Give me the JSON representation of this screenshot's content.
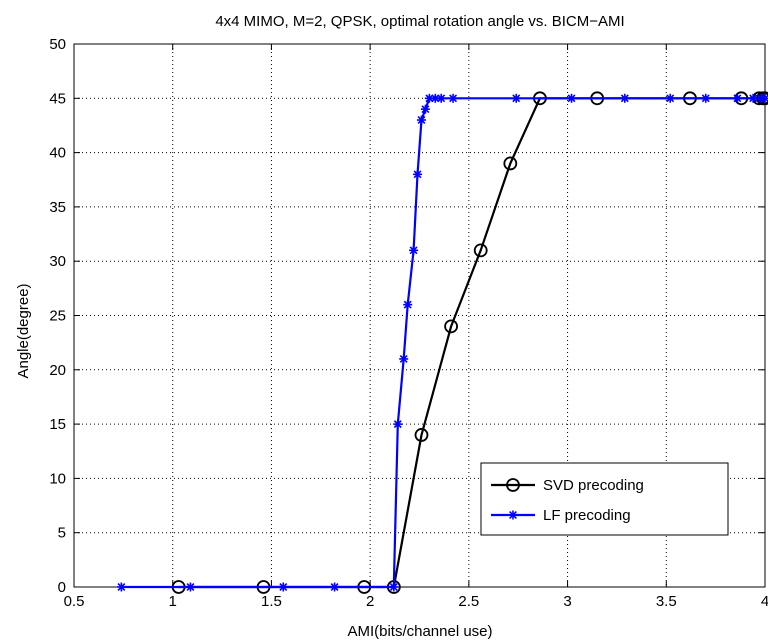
{
  "chart_data": {
    "type": "line",
    "title": "4x4 MIMO, M=2, QPSK, optimal rotation angle vs. BICM−AMI",
    "xlabel": "AMI(bits/channel use)",
    "ylabel": "Angle(degree)",
    "xlim": [
      0.5,
      4
    ],
    "ylim": [
      0,
      50
    ],
    "xticks": [
      0.5,
      1,
      1.5,
      2,
      2.5,
      3,
      3.5,
      4
    ],
    "yticks": [
      0,
      5,
      10,
      15,
      20,
      25,
      30,
      35,
      40,
      45,
      50
    ],
    "xtick_labels": [
      "0.5",
      "1",
      "1.5",
      "2",
      "2.5",
      "3",
      "3.5",
      "4"
    ],
    "ytick_labels": [
      "0",
      "5",
      "10",
      "15",
      "20",
      "25",
      "30",
      "35",
      "40",
      "45",
      "50"
    ],
    "grid": true,
    "legend_position": "bottom-right",
    "series": [
      {
        "name": "SVD precoding",
        "color": "#000000",
        "marker": "circle",
        "x": [
          1.03,
          1.46,
          1.97,
          2.12,
          2.26,
          2.41,
          2.56,
          2.71,
          2.86,
          3.15,
          3.62,
          3.88,
          3.97,
          3.99,
          4.0
        ],
        "y": [
          0,
          0,
          0,
          0,
          14,
          24,
          31,
          39,
          45,
          45,
          45,
          45,
          45,
          45,
          45
        ]
      },
      {
        "name": "LF precoding",
        "color": "#0000ff",
        "marker": "star",
        "x": [
          0.74,
          1.09,
          1.56,
          1.82,
          2.12,
          2.14,
          2.17,
          2.19,
          2.22,
          2.24,
          2.26,
          2.28,
          2.3,
          2.33,
          2.36,
          2.42,
          2.74,
          3.02,
          3.29,
          3.52,
          3.7,
          3.86,
          3.94,
          3.98,
          4.0
        ],
        "y": [
          0,
          0,
          0,
          0,
          0,
          15,
          21,
          26,
          31,
          38,
          43,
          44,
          45,
          45,
          45,
          45,
          45,
          45,
          45,
          45,
          45,
          45,
          45,
          45,
          45
        ]
      }
    ]
  }
}
